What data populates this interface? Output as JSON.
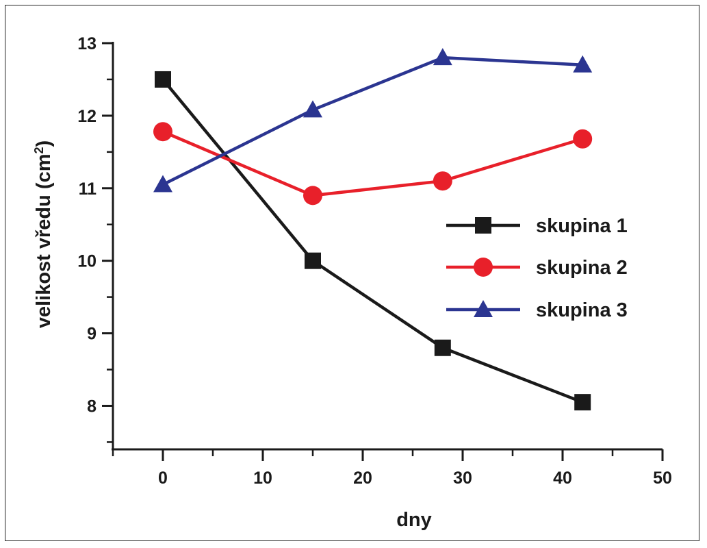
{
  "chart_data": {
    "type": "line",
    "xlabel": "dny",
    "ylabel": "velikost vředu (cm",
    "ylabel_sup": "2",
    "ylabel_close": ")",
    "xlim": [
      -5,
      50
    ],
    "ylim": [
      7.4,
      13
    ],
    "xticks": [
      0,
      10,
      20,
      30,
      40,
      50
    ],
    "xticks_minor": [
      -5,
      5,
      15,
      25,
      35,
      45
    ],
    "yticks": [
      8,
      9,
      10,
      11,
      12,
      13
    ],
    "grid": false,
    "legend_position": "right",
    "x": [
      0,
      15,
      28,
      42
    ],
    "series": [
      {
        "name": "skupina 1",
        "marker": "square",
        "color": "#1a1a1a",
        "values": [
          12.5,
          10.0,
          8.8,
          8.05
        ]
      },
      {
        "name": "skupina 2",
        "marker": "circle",
        "color": "#e8202a",
        "values": [
          11.78,
          10.9,
          11.1,
          11.68
        ]
      },
      {
        "name": "skupina 3",
        "marker": "triangle",
        "color": "#2b3591",
        "values": [
          11.05,
          12.08,
          12.8,
          12.7
        ]
      }
    ]
  }
}
